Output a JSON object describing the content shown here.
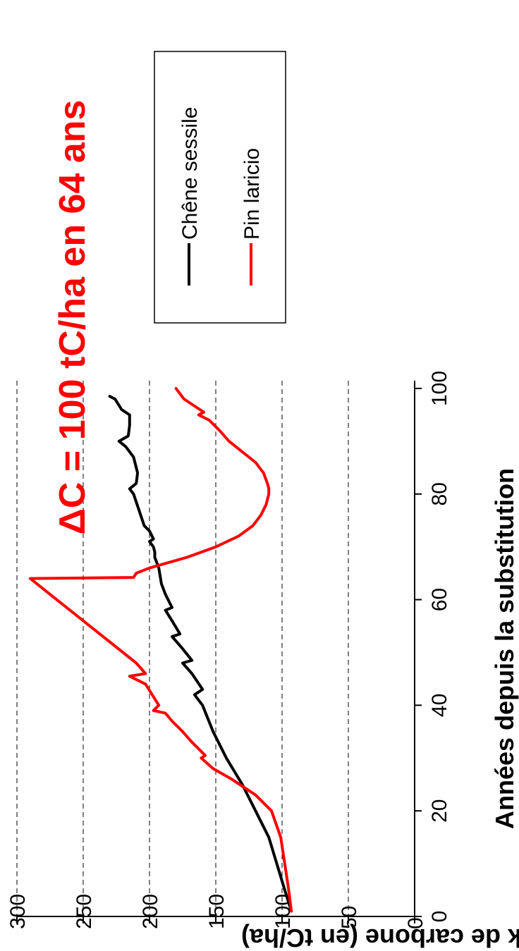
{
  "chart_data": {
    "type": "line",
    "orientation": "rotated 90 degrees counter-clockwise",
    "title": "",
    "annotation": "ΔC = 100 tC/ha en 64 ans",
    "annotation_color": "#ff0000",
    "xlabel": "Années depuis la substitution",
    "ylabel": "Stock de carbone (en tC/ha)",
    "xlim": [
      0,
      100
    ],
    "ylim": [
      0,
      300
    ],
    "xticks": [
      0,
      20,
      40,
      60,
      80,
      100
    ],
    "yticks": [
      0,
      50,
      100,
      150,
      200,
      250,
      300
    ],
    "xtick_labels": [
      "0",
      "20",
      "40",
      "60",
      "80",
      "100"
    ],
    "ytick_labels": [
      "0",
      "50",
      "100",
      "150",
      "200",
      "250",
      "300"
    ],
    "grid": "horizontal dashed gridlines at each y tick",
    "legend_placement": "right",
    "series": [
      {
        "name": "Chêne sessile",
        "color": "#000000",
        "x": [
          1,
          5,
          10,
          15,
          20,
          25,
          30,
          35,
          40,
          42,
          43,
          46,
          48,
          48.5,
          51,
          53,
          53.5,
          56,
          58,
          58.5,
          61,
          63,
          66,
          68,
          69,
          70,
          71,
          71.5,
          73,
          74,
          77,
          80,
          81,
          82,
          84,
          87,
          89,
          90,
          91,
          93,
          95,
          96,
          98,
          98.5
        ],
        "y": [
          93,
          98,
          104,
          110,
          120,
          130,
          142,
          152,
          160,
          166,
          160,
          168,
          175,
          168,
          176,
          183,
          177,
          183,
          188,
          183,
          188,
          191,
          193,
          196,
          196,
          197,
          200,
          197,
          200,
          204,
          208,
          212,
          215,
          210,
          209,
          212,
          218,
          223,
          216,
          215,
          215,
          221,
          226,
          230
        ]
      },
      {
        "name": "Pin laricio",
        "color": "#ff0000",
        "x": [
          1,
          5,
          10,
          15,
          20,
          23,
          26,
          28,
          30,
          30.5,
          33,
          35,
          37,
          38.5,
          39,
          40,
          44,
          45.5,
          46,
          48,
          52,
          56,
          60,
          64,
          64.2,
          65,
          66,
          68,
          70,
          72,
          74,
          76,
          78,
          80,
          81,
          82,
          84,
          86,
          88,
          90,
          92,
          94,
          95,
          95.5,
          97,
          98,
          100
        ],
        "y": [
          93,
          95,
          98,
          101,
          108,
          120,
          138,
          152,
          161,
          158,
          168,
          175,
          183,
          188,
          197,
          193,
          203,
          215,
          203,
          210,
          230,
          250,
          270,
          290,
          212,
          210,
          200,
          172,
          150,
          133,
          122,
          116,
          112,
          110,
          110,
          111,
          114,
          120,
          130,
          140,
          147,
          155,
          163,
          159,
          168,
          174,
          180
        ]
      }
    ]
  }
}
